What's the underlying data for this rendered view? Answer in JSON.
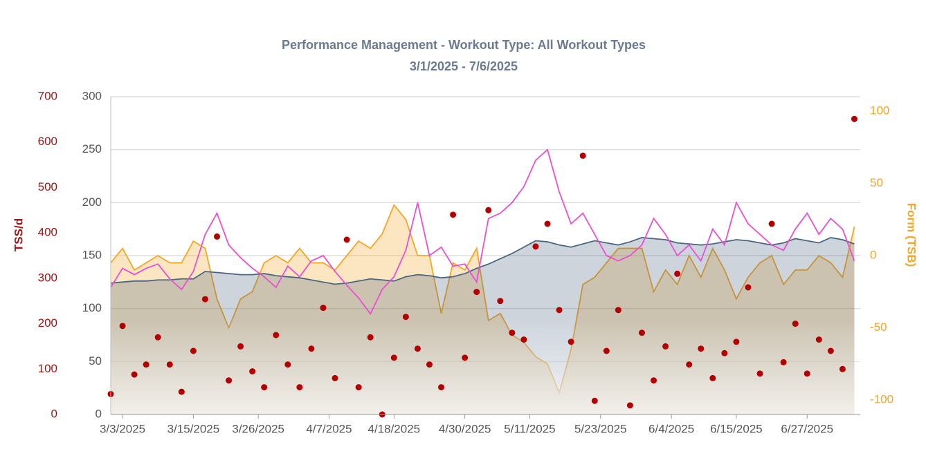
{
  "chart_data": {
    "type": "combo",
    "title": "Performance Management - Workout Type: All Workout Types",
    "subtitle": "3/1/2025 - 7/6/2025",
    "y3_label": "TSS/d",
    "y2_label": "Form (TSB)",
    "x": [
      "3/1/2025",
      "3/3/2025",
      "3/5/2025",
      "3/7/2025",
      "3/9/2025",
      "3/11/2025",
      "3/13/2025",
      "3/15/2025",
      "3/17/2025",
      "3/19/2025",
      "3/21/2025",
      "3/23/2025",
      "3/25/2025",
      "3/27/2025",
      "3/29/2025",
      "3/31/2025",
      "4/2/2025",
      "4/4/2025",
      "4/6/2025",
      "4/8/2025",
      "4/10/2025",
      "4/12/2025",
      "4/14/2025",
      "4/16/2025",
      "4/18/2025",
      "4/20/2025",
      "4/22/2025",
      "4/24/2025",
      "4/26/2025",
      "4/28/2025",
      "4/30/2025",
      "5/2/2025",
      "5/4/2025",
      "5/6/2025",
      "5/8/2025",
      "5/10/2025",
      "5/12/2025",
      "5/14/2025",
      "5/16/2025",
      "5/18/2025",
      "5/20/2025",
      "5/22/2025",
      "5/24/2025",
      "5/26/2025",
      "5/28/2025",
      "5/30/2025",
      "6/1/2025",
      "6/3/2025",
      "6/5/2025",
      "6/7/2025",
      "6/9/2025",
      "6/11/2025",
      "6/13/2025",
      "6/15/2025",
      "6/17/2025",
      "6/19/2025",
      "6/21/2025",
      "6/23/2025",
      "6/25/2025",
      "6/27/2025",
      "6/29/2025",
      "7/1/2025",
      "7/3/2025",
      "7/5/2025"
    ],
    "xlim": [
      "3/1/2025",
      "7/6/2025"
    ],
    "xticks": [
      "3/3/2025",
      "3/15/2025",
      "3/26/2025",
      "4/7/2025",
      "4/18/2025",
      "4/30/2025",
      "5/11/2025",
      "5/23/2025",
      "6/4/2025",
      "6/15/2025",
      "6/27/2025"
    ],
    "ylim": [
      0,
      300
    ],
    "yticks": [
      0,
      50,
      100,
      150,
      200,
      250,
      300
    ],
    "y2lim": [
      -110,
      110
    ],
    "y2ticks": [
      -100,
      -50,
      0,
      50,
      100
    ],
    "y3lim": [
      0,
      700
    ],
    "y3ticks": [
      0,
      100,
      200,
      300,
      400,
      500,
      600,
      700
    ],
    "grid": true,
    "series": [
      {
        "kind": "area",
        "axis": "y2",
        "color": "#f5a623",
        "values": [
          -5,
          5,
          -10,
          -5,
          0,
          -5,
          -5,
          10,
          5,
          -30,
          -50,
          -30,
          -25,
          -5,
          0,
          -5,
          5,
          -5,
          -5,
          -10,
          0,
          10,
          5,
          15,
          35,
          25,
          0,
          0,
          -40,
          -5,
          -10,
          5,
          -45,
          -40,
          -55,
          -60,
          -70,
          -75,
          -95,
          -65,
          -20,
          -15,
          -5,
          5,
          5,
          5,
          -25,
          -10,
          -20,
          0,
          -15,
          5,
          -10,
          -30,
          -15,
          -5,
          0,
          -20,
          -10,
          -10,
          0,
          -5,
          -15,
          20
        ]
      },
      {
        "kind": "area",
        "axis": "y",
        "color": "#4a6680",
        "values": [
          124,
          125,
          126,
          126,
          127,
          127,
          128,
          128,
          135,
          134,
          133,
          132,
          132,
          133,
          131,
          130,
          129,
          127,
          125,
          123,
          124,
          126,
          128,
          127,
          126,
          130,
          132,
          131,
          129,
          130,
          133,
          138,
          142,
          147,
          152,
          158,
          164,
          163,
          160,
          158,
          161,
          164,
          162,
          160,
          163,
          167,
          166,
          165,
          162,
          161,
          160,
          161,
          163,
          165,
          164,
          162,
          160,
          162,
          166,
          164,
          162,
          167,
          165,
          161
        ]
      },
      {
        "kind": "line",
        "axis": "y",
        "color": "#e94fd4",
        "values": [
          120,
          138,
          132,
          138,
          142,
          128,
          118,
          135,
          170,
          190,
          160,
          148,
          138,
          130,
          120,
          140,
          130,
          145,
          150,
          135,
          122,
          110,
          95,
          118,
          130,
          155,
          200,
          150,
          158,
          140,
          142,
          125,
          185,
          190,
          200,
          215,
          240,
          250,
          210,
          180,
          190,
          170,
          150,
          145,
          150,
          160,
          185,
          170,
          150,
          160,
          145,
          175,
          160,
          200,
          180,
          170,
          160,
          155,
          175,
          190,
          170,
          185,
          175,
          145
        ]
      },
      {
        "kind": "scatter",
        "axis": "y3",
        "color": "#b30000",
        "values": [
          45,
          195,
          88,
          110,
          170,
          110,
          50,
          140,
          254,
          392,
          75,
          150,
          95,
          60,
          175,
          110,
          60,
          145,
          235,
          80,
          385,
          60,
          170,
          0,
          125,
          215,
          145,
          110,
          60,
          440,
          125,
          270,
          450,
          250,
          180,
          165,
          370,
          420,
          230,
          160,
          570,
          30,
          140,
          230,
          20,
          180,
          75,
          150,
          310,
          110,
          145,
          80,
          135,
          160,
          280,
          90,
          420,
          115,
          200,
          90,
          165,
          140,
          100,
          651
        ]
      }
    ]
  }
}
